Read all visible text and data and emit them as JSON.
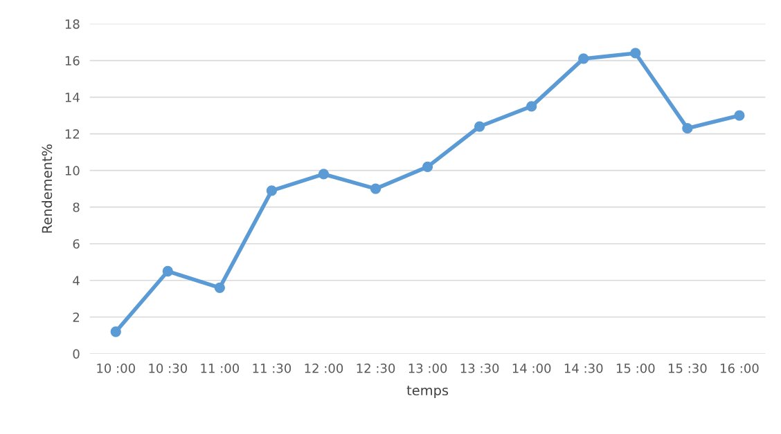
{
  "chart_data": {
    "type": "line",
    "xlabel": "temps",
    "ylabel": "Rendement%",
    "categories": [
      "10 :00",
      "10 :30",
      "11 :00",
      "11 :30",
      "12 :00",
      "12 :30",
      "13 :00",
      "13 :30",
      "14 :00",
      "14 :30",
      "15 :00",
      "15 :30",
      "16 :00"
    ],
    "series": [
      {
        "color": "#5b9bd5",
        "values": [
          1.2,
          4.5,
          3.6,
          8.9,
          9.8,
          9.0,
          10.2,
          12.4,
          13.5,
          16.1,
          16.4,
          12.3,
          13.0
        ]
      }
    ],
    "ylim": [
      0,
      18
    ],
    "yticks": [
      0,
      2,
      4,
      6,
      8,
      10,
      12,
      14,
      16,
      18
    ],
    "grid": "y",
    "marker": "circle",
    "line_style": "solid"
  }
}
